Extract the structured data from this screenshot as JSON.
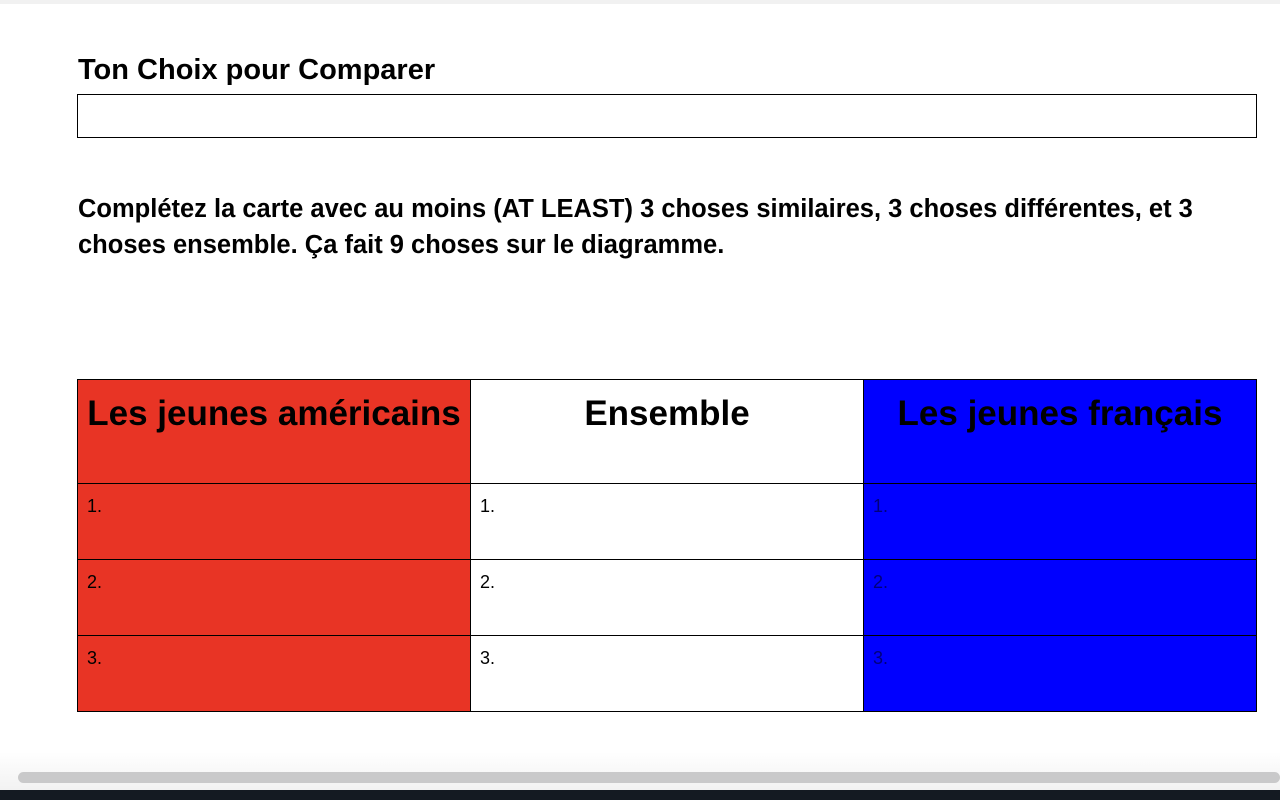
{
  "heading": "Ton Choix pour Comparer",
  "answer_value": "",
  "instructions": "Complétez la carte avec au moins (AT LEAST) 3 choses similaires, 3 choses différentes, et 3 choses ensemble.  Ça fait 9 choses  sur le diagramme.",
  "table": {
    "headers": [
      "Les jeunes américains",
      "Ensemble",
      "Les jeunes français"
    ],
    "rows": [
      [
        "1.",
        "1.",
        "1."
      ],
      [
        "2.",
        "2.",
        "2."
      ],
      [
        "3.",
        "3.",
        "3."
      ]
    ],
    "colors": {
      "left": "#e83425",
      "middle": "#ffffff",
      "right": "#0000ff"
    }
  }
}
